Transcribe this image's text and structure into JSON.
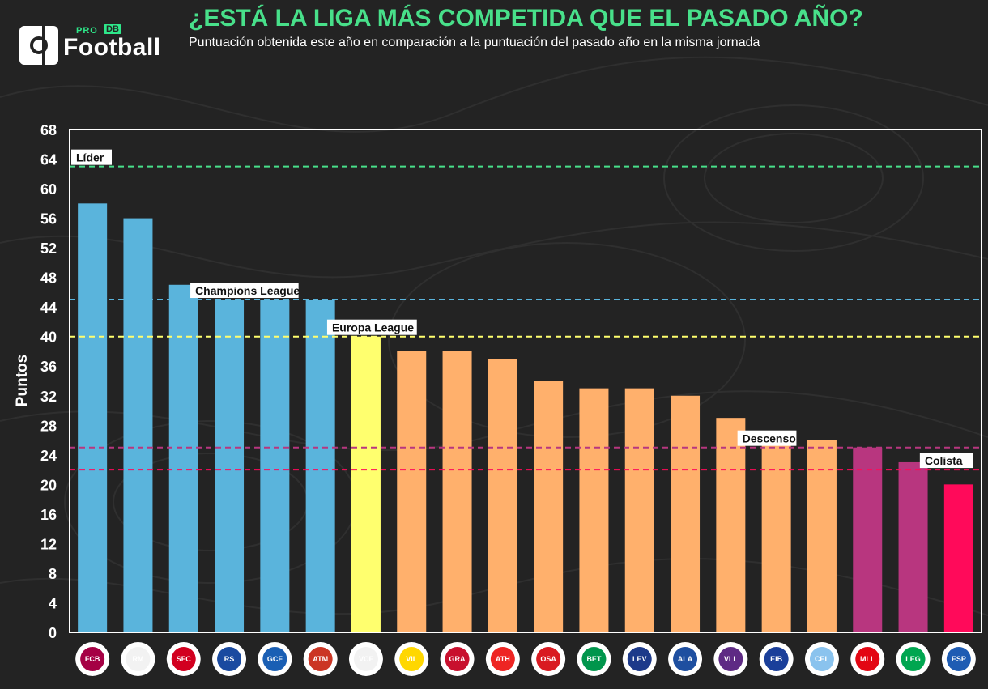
{
  "header": {
    "logo_pro": "PRO",
    "logo_db": "DB",
    "logo_name": "Football",
    "title": "¿ESTÁ LA LIGA MÁS COMPETIDA QUE EL PASADO AÑO?",
    "subtitle": "Puntuación obtenida este año en comparación a la puntuación del pasado año en la misma jornada"
  },
  "colors": {
    "background": "#232323",
    "title": "#48e08a",
    "champions": "#5ab4dc",
    "europa": "#ffff6e",
    "mid": "#ffb06c",
    "relegation": "#b8367f",
    "last": "#ff0a5a",
    "line_lider": "#48e08a",
    "line_champions": "#5ab4dc",
    "line_europa": "#ffff6e",
    "line_descenso": "#b8367f",
    "line_colista": "#ff0a5a"
  },
  "chart_data": {
    "type": "bar",
    "ylabel": "Puntos",
    "ylim": [
      0,
      68
    ],
    "yticks": [
      0,
      4,
      8,
      12,
      16,
      20,
      24,
      28,
      32,
      36,
      40,
      44,
      48,
      52,
      56,
      60,
      64,
      68
    ],
    "categories": [
      "Barcelona",
      "Real Madrid",
      "Sevilla",
      "Real Sociedad",
      "Getafe",
      "Atlético de Madrid",
      "Valencia",
      "Villarreal",
      "Granada",
      "Athletic Club",
      "Osasuna",
      "Real Betis",
      "Levante",
      "Alavés",
      "Real Valladolid",
      "Eibar",
      "Celta de Vigo",
      "Mallorca",
      "Leganés",
      "Espanyol"
    ],
    "crest_initials": [
      "FCB",
      "RM",
      "SFC",
      "RS",
      "GCF",
      "ATM",
      "VCF",
      "VIL",
      "GRA",
      "ATH",
      "OSA",
      "BET",
      "LEV",
      "ALA",
      "VLL",
      "EIB",
      "CEL",
      "MLL",
      "LEG",
      "ESP"
    ],
    "values": [
      58,
      56,
      47,
      45,
      45,
      45,
      40,
      38,
      38,
      37,
      34,
      33,
      33,
      32,
      29,
      26,
      26,
      25,
      23,
      20
    ],
    "groups": [
      "champions",
      "champions",
      "champions",
      "champions",
      "champions",
      "champions",
      "europa",
      "mid",
      "mid",
      "mid",
      "mid",
      "mid",
      "mid",
      "mid",
      "mid",
      "mid",
      "mid",
      "relegation",
      "relegation",
      "last"
    ],
    "reference_lines": [
      {
        "label": "Líder",
        "value": 63,
        "color": "#48e08a",
        "anchor_index": 0
      },
      {
        "label": "Champions League",
        "value": 45,
        "color": "#5ab4dc",
        "anchor_index": 3
      },
      {
        "label": "Europa League",
        "value": 40,
        "color": "#ffff6e",
        "anchor_index": 6
      },
      {
        "label": "Descenso",
        "value": 25,
        "color": "#b8367f",
        "anchor_index": 15
      },
      {
        "label": "Colista",
        "value": 22,
        "color": "#ff0a5a",
        "anchor_index": 19
      }
    ]
  }
}
